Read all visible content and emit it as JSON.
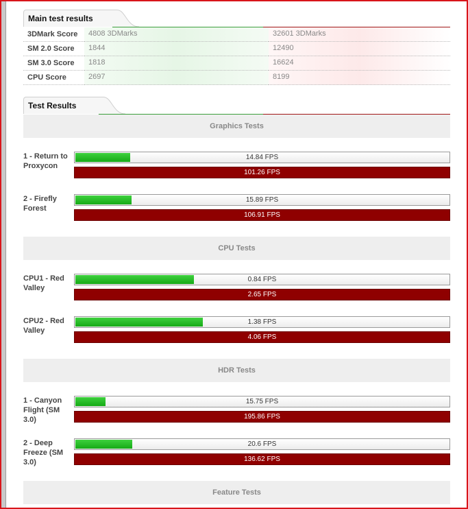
{
  "main_results": {
    "title": "Main test results",
    "rows": [
      {
        "label": "3DMark Score",
        "a": "4808 3DMarks",
        "b": "32601 3DMarks"
      },
      {
        "label": "SM 2.0 Score",
        "a": "1844",
        "b": "12490"
      },
      {
        "label": "SM 3.0 Score",
        "a": "1818",
        "b": "16624"
      },
      {
        "label": "CPU Score",
        "a": "2697",
        "b": "8199"
      }
    ]
  },
  "test_results": {
    "title": "Test Results",
    "sections": [
      {
        "title": "Graphics Tests",
        "tests": [
          {
            "name": "1 - Return to Proxycon",
            "a": "14.84 FPS",
            "b": "101.26 FPS",
            "a_fraction": 0.147
          },
          {
            "name": "2 - Firefly Forest",
            "a": "15.89 FPS",
            "b": "106.91 FPS",
            "a_fraction": 0.149
          }
        ]
      },
      {
        "title": "CPU Tests",
        "tests": [
          {
            "name": "CPU1 - Red Valley",
            "a": "0.84 FPS",
            "b": "2.65 FPS",
            "a_fraction": 0.317
          },
          {
            "name": "CPU2 - Red Valley",
            "a": "1.38 FPS",
            "b": "4.06 FPS",
            "a_fraction": 0.34
          }
        ]
      },
      {
        "title": "HDR Tests",
        "tests": [
          {
            "name": "1 - Canyon Flight (SM 3.0)",
            "a": "15.75 FPS",
            "b": "195.86 FPS",
            "a_fraction": 0.08
          },
          {
            "name": "2 - Deep Freeze (SM 3.0)",
            "a": "20.6 FPS",
            "b": "136.62 FPS",
            "a_fraction": 0.151
          }
        ]
      },
      {
        "title": "Feature Tests",
        "tests": []
      }
    ]
  }
}
